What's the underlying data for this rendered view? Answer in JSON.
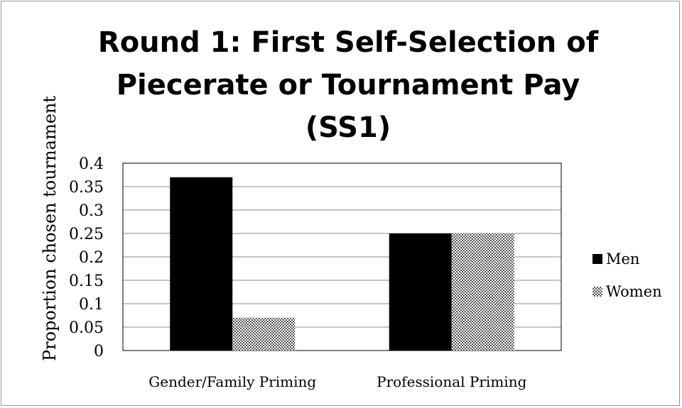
{
  "chart_data": {
    "type": "bar",
    "title_lines": [
      "Round 1: First Self-Selection of",
      "Piecerate or Tournament Pay",
      "(SS1)"
    ],
    "xlabel": "",
    "ylabel": "Proportion chosen tournament",
    "categories": [
      "Gender/Family Priming",
      "Professional Priming"
    ],
    "series": [
      {
        "name": "Men",
        "values": [
          0.37,
          0.25
        ],
        "color": "#000000",
        "pattern": "solid"
      },
      {
        "name": "Women",
        "values": [
          0.07,
          0.25
        ],
        "color": "#808080",
        "pattern": "crosshatch"
      }
    ],
    "ylim": [
      0,
      0.4
    ],
    "yticks": [
      "0",
      "0.05",
      "0.1",
      "0.15",
      "0.2",
      "0.25",
      "0.3",
      "0.35",
      "0.4"
    ],
    "grid": true,
    "legend_position": "right"
  }
}
